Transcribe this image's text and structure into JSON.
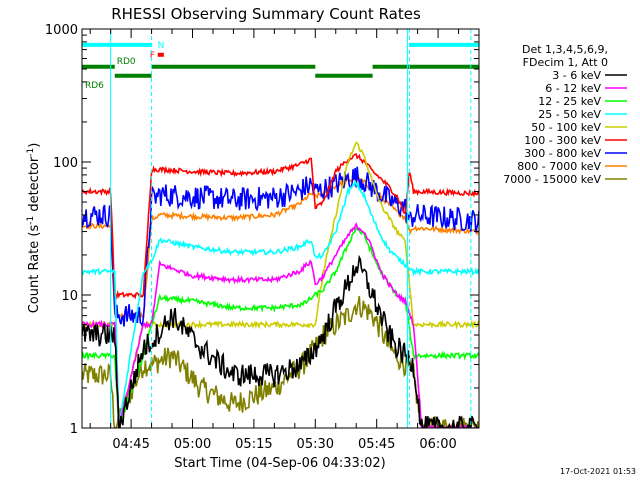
{
  "chart_data": {
    "type": "line",
    "title": "RHESSI Observing Summary Count Rates",
    "xlabel": "Start Time (04-Sep-06 04:33:02)",
    "ylabel_main": "Count Rate (s",
    "ylabel_sup": "-1",
    "ylabel_mid": " detector",
    "ylabel_sup2": "-1",
    "ylabel_end": ")",
    "yscale": "log",
    "ylim": [
      1,
      1000
    ],
    "xlim_minutes": [
      33,
      130
    ],
    "y_ticks": [
      "1",
      "10",
      "100",
      "1000"
    ],
    "x_ticks": [
      {
        "label": "04:45",
        "minute": 45
      },
      {
        "label": "05:00",
        "minute": 60
      },
      {
        "label": "05:15",
        "minute": 75
      },
      {
        "label": "05:30",
        "minute": 90
      },
      {
        "label": "05:45",
        "minute": 105
      },
      {
        "label": "06:00",
        "minute": 120
      }
    ],
    "timestamp": "17-Oct-2021 01:53",
    "legend_header": [
      "Det 1,3,4,5,6,9,",
      "FDecim 1, Att 0"
    ],
    "legend_placement": "right",
    "state_bars": [
      {
        "label": "N",
        "color": "#00ffff",
        "segments": [
          [
            33,
            50
          ],
          [
            113,
            130
          ]
        ],
        "level": 760
      },
      {
        "label": "F",
        "color": "#ff0000",
        "segments": [
          [
            51.5,
            53
          ]
        ],
        "level": 640
      },
      {
        "label": "RD0",
        "color": "#008000",
        "segments": [
          [
            33,
            41
          ],
          [
            50,
            90
          ],
          [
            104,
            113
          ],
          [
            113,
            130
          ]
        ],
        "level": 520
      },
      {
        "label": "RD6",
        "color": "#008000",
        "segments": [
          [
            41,
            50
          ],
          [
            90,
            104
          ]
        ],
        "level": 445
      }
    ],
    "eclipse_lines": [
      {
        "minute": 40,
        "style": "solid"
      },
      {
        "minute": 50,
        "style": "dashed"
      },
      {
        "minute": 112.5,
        "style": "solid"
      },
      {
        "minute": 113,
        "style": "dashed"
      },
      {
        "minute": 128,
        "style": "dashed"
      }
    ],
    "series": [
      {
        "name": "3 - 6 keV",
        "color": "#000000",
        "x": [
          33,
          41,
          42,
          48,
          50,
          55,
          62,
          70,
          80,
          87,
          90,
          92,
          95,
          98,
          100,
          102,
          104,
          106,
          108,
          110,
          112,
          114,
          116,
          120,
          130
        ],
        "y": [
          5,
          5,
          1,
          4,
          4.5,
          7,
          4,
          2.5,
          2.5,
          3,
          4,
          5,
          8,
          12,
          17,
          14,
          10,
          7,
          5,
          4,
          3.5,
          3,
          1,
          1,
          1
        ]
      },
      {
        "name": "6 - 12 keV",
        "color": "#ff00ff",
        "x": [
          33,
          41,
          42,
          48,
          50,
          52,
          60,
          70,
          80,
          86,
          89,
          90,
          92,
          95,
          98,
          100,
          102,
          104,
          106,
          108,
          110,
          112,
          114,
          116,
          130
        ],
        "y": [
          6,
          6,
          1,
          6,
          6,
          17,
          14,
          13,
          13,
          15,
          18,
          12,
          14,
          20,
          28,
          33,
          30,
          22,
          15,
          12,
          10,
          9,
          6,
          1,
          1
        ]
      },
      {
        "name": "12 - 25 keV",
        "color": "#00ff00",
        "x": [
          33,
          41,
          42,
          48,
          50,
          52,
          60,
          70,
          80,
          87,
          90,
          92,
          95,
          98,
          100,
          102,
          104,
          106,
          108,
          110,
          112,
          114,
          130
        ],
        "y": [
          3.5,
          3.5,
          1,
          3.5,
          6,
          9.5,
          9,
          8,
          8,
          8.5,
          10,
          11,
          15,
          24,
          32,
          28,
          20,
          15,
          12,
          10,
          9,
          3.5,
          3.5
        ]
      },
      {
        "name": "25 - 50 keV",
        "color": "#00ffff",
        "x": [
          33,
          41,
          42,
          48,
          50,
          52,
          60,
          70,
          80,
          86,
          89,
          90,
          92,
          95,
          98,
          100,
          102,
          104,
          106,
          108,
          110,
          112,
          114,
          130
        ],
        "y": [
          15,
          15,
          1,
          15,
          18,
          26,
          23,
          21,
          21,
          23,
          26,
          19,
          20,
          30,
          60,
          70,
          55,
          38,
          28,
          22,
          19,
          17,
          15,
          15
        ]
      },
      {
        "name": "50 - 100 keV",
        "color": "#cccc00",
        "x": [
          33,
          41,
          42,
          48,
          50,
          55,
          70,
          85,
          90,
          92,
          95,
          98,
          100,
          102,
          104,
          106,
          108,
          110,
          112,
          114,
          130
        ],
        "y": [
          6,
          6,
          1,
          6,
          6,
          6,
          6,
          6,
          6,
          15,
          40,
          100,
          140,
          110,
          70,
          48,
          38,
          30,
          25,
          6,
          6
        ]
      },
      {
        "name": "100 - 300 keV",
        "color": "#ff0000",
        "x": [
          33,
          40,
          41,
          48,
          50,
          52,
          60,
          70,
          80,
          86,
          89,
          90,
          92,
          95,
          98,
          100,
          102,
          104,
          106,
          108,
          110,
          112,
          113,
          114,
          130
        ],
        "y": [
          60,
          60,
          10,
          10,
          88,
          88,
          85,
          82,
          85,
          95,
          105,
          45,
          50,
          85,
          105,
          112,
          100,
          85,
          75,
          65,
          55,
          40,
          85,
          60,
          58
        ]
      },
      {
        "name": "300 - 800 keV",
        "color": "#0000ff",
        "x": [
          33,
          40,
          41,
          48,
          50,
          52,
          60,
          70,
          80,
          86,
          89,
          90,
          92,
          95,
          98,
          100,
          102,
          104,
          106,
          108,
          110,
          112,
          113,
          114,
          130
        ],
        "y": [
          40,
          40,
          7,
          7,
          52,
          57,
          55,
          52,
          54,
          60,
          68,
          60,
          62,
          68,
          75,
          78,
          72,
          64,
          58,
          52,
          48,
          45,
          35,
          40,
          36
        ]
      },
      {
        "name": "800 - 7000 keV",
        "color": "#ff8000",
        "x": [
          33,
          40,
          41,
          48,
          50,
          52,
          60,
          70,
          80,
          86,
          89,
          90,
          92,
          95,
          98,
          100,
          102,
          104,
          106,
          108,
          110,
          112,
          113,
          114,
          130
        ],
        "y": [
          33,
          33,
          7,
          7,
          37,
          40,
          39,
          38,
          40,
          48,
          58,
          55,
          58,
          66,
          72,
          75,
          70,
          62,
          55,
          48,
          42,
          38,
          30,
          32,
          30
        ]
      },
      {
        "name": "7000 - 15000 keV",
        "color": "#808000",
        "x": [
          33,
          40,
          41,
          48,
          50,
          55,
          62,
          70,
          80,
          87,
          90,
          92,
          95,
          98,
          100,
          102,
          104,
          106,
          108,
          110,
          112,
          114,
          116,
          120,
          130
        ],
        "y": [
          2.5,
          2.5,
          1,
          3,
          3,
          3.5,
          2,
          1.5,
          2,
          3,
          4,
          5,
          6,
          7,
          8.5,
          8,
          7,
          5.5,
          4,
          3.5,
          3,
          2.5,
          1,
          1,
          1
        ]
      }
    ]
  }
}
